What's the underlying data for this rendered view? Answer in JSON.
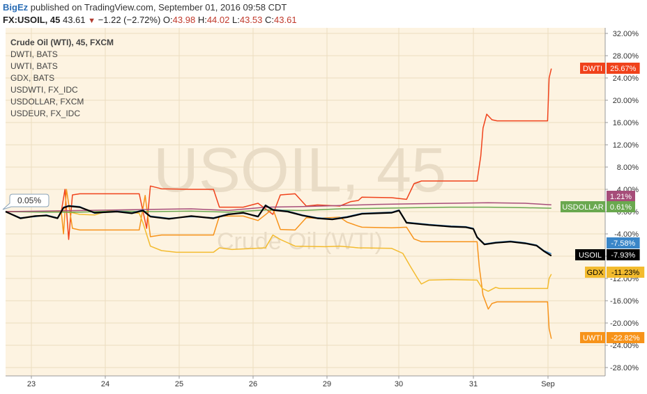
{
  "header": {
    "publisher": "BigEz",
    "published_text": "published on TradingView.com, September 01, 2016 09:58 CDT",
    "symbol": "FX:USOIL, 45",
    "last": "43.61",
    "change": "−1.22 (−2.72%)",
    "open_label": "O:",
    "open": "43.98",
    "high_label": "H:",
    "high": "44.02",
    "low_label": "L:",
    "low": "43.53",
    "close_label": "C:",
    "close": "43.61",
    "down_arrow_icon": "triangle-down-icon"
  },
  "watermark": {
    "big": "USOIL, 45",
    "small": "Crude Oil (WTI)"
  },
  "cursor_label": "0.05%",
  "colors": {
    "background": "#fdf3e1",
    "DWTI": "#f0421b",
    "UWTI": "#f7931a",
    "GDX": "#f3bb2e",
    "USDWTI": "#3a86c8",
    "USDOLLAR": "#6aa84f",
    "USDEUR": "#a64d79",
    "USOIL": "#000000"
  },
  "chart_data": {
    "type": "line",
    "yunit": "%",
    "ylim": [
      -30,
      32
    ],
    "yticks": [
      "32.00%",
      "28.00%",
      "24.00%",
      "20.00%",
      "16.00%",
      "12.00%",
      "8.00%",
      "4.00%",
      "0.00%",
      "-4.00%",
      "-8.00%",
      "-12.00%",
      "-16.00%",
      "-20.00%",
      "-24.00%",
      "-28.00%"
    ],
    "x_days": [
      "23",
      "24",
      "25",
      "26",
      "29",
      "30",
      "31",
      "Sep"
    ],
    "grid": true,
    "legend_placement": "top-left",
    "legend": [
      "Crude Oil (WTI), 45, FXCM",
      "DWTI, BATS",
      "UWTI, BATS",
      "GDX, BATS",
      "USDWTI, FX_IDC",
      "USDOLLAR, FXCM",
      "USDEUR, FX_IDC"
    ],
    "series": [
      {
        "name": "DWTI",
        "label": "DWTI",
        "last": "25.67%",
        "points": [
          [
            0,
            0
          ],
          [
            0.75,
            0
          ],
          [
            0.8,
            4
          ],
          [
            0.85,
            -5
          ],
          [
            0.9,
            3
          ],
          [
            1.0,
            3.2
          ],
          [
            1.4,
            3.2
          ],
          [
            1.8,
            3.2
          ],
          [
            1.9,
            -3
          ],
          [
            1.95,
            4.6
          ],
          [
            2.1,
            4.1
          ],
          [
            2.5,
            4
          ],
          [
            2.8,
            4
          ],
          [
            2.88,
            0.8
          ],
          [
            3.2,
            0.8
          ],
          [
            3.4,
            1.5
          ],
          [
            3.6,
            -0.5
          ],
          [
            3.7,
            3
          ],
          [
            3.9,
            3.2
          ],
          [
            4.05,
            1
          ],
          [
            4.2,
            1.2
          ],
          [
            4.5,
            1
          ],
          [
            4.65,
            1.8
          ],
          [
            4.75,
            2
          ],
          [
            4.8,
            2.6
          ],
          [
            5.2,
            2.5
          ],
          [
            5.4,
            2.2
          ],
          [
            5.5,
            5
          ],
          [
            5.6,
            5.5
          ],
          [
            5.9,
            5.5
          ],
          [
            6.2,
            5.5
          ],
          [
            6.35,
            5.5
          ],
          [
            6.4,
            10
          ],
          [
            6.43,
            15
          ],
          [
            6.48,
            17.5
          ],
          [
            6.55,
            16.5
          ],
          [
            6.62,
            16.3
          ],
          [
            6.9,
            16.3
          ],
          [
            7.3,
            16.3
          ],
          [
            7.32,
            24
          ],
          [
            7.35,
            25.67
          ]
        ]
      },
      {
        "name": "UWTI",
        "label": "UWTI",
        "last": "-22.82%",
        "points": [
          [
            0,
            0
          ],
          [
            0.75,
            0
          ],
          [
            0.78,
            -4
          ],
          [
            0.82,
            4
          ],
          [
            0.9,
            -3
          ],
          [
            1.0,
            -3.3
          ],
          [
            1.8,
            -3.3
          ],
          [
            1.88,
            2.9
          ],
          [
            1.95,
            -4.5
          ],
          [
            2.1,
            -4.2
          ],
          [
            2.5,
            -4.2
          ],
          [
            2.8,
            -4.2
          ],
          [
            2.88,
            -0.8
          ],
          [
            3.2,
            -0.8
          ],
          [
            3.4,
            -1.6
          ],
          [
            3.6,
            0.5
          ],
          [
            3.7,
            -3.2
          ],
          [
            3.9,
            -3.3
          ],
          [
            4.05,
            -1.1
          ],
          [
            4.2,
            -1.2
          ],
          [
            4.5,
            -1
          ],
          [
            4.6,
            -1.9
          ],
          [
            4.75,
            -2.6
          ],
          [
            4.8,
            -2.8
          ],
          [
            5.2,
            -2.9
          ],
          [
            5.4,
            -2.8
          ],
          [
            5.5,
            -4.9
          ],
          [
            5.6,
            -5.4
          ],
          [
            6.2,
            -5.4
          ],
          [
            6.35,
            -5.4
          ],
          [
            6.38,
            -10
          ],
          [
            6.43,
            -15
          ],
          [
            6.5,
            -17.5
          ],
          [
            6.55,
            -16.5
          ],
          [
            6.62,
            -16.2
          ],
          [
            7.0,
            -16.2
          ],
          [
            7.3,
            -16.2
          ],
          [
            7.32,
            -21
          ],
          [
            7.35,
            -22.82
          ]
        ]
      },
      {
        "name": "GDX",
        "label": "GDX",
        "last": "-11.23%",
        "points": [
          [
            0,
            0
          ],
          [
            0.75,
            0
          ],
          [
            0.9,
            -0.2
          ],
          [
            1.0,
            -0.5
          ],
          [
            1.2,
            -0.6
          ],
          [
            1.4,
            0.2
          ],
          [
            1.8,
            -0.3
          ],
          [
            1.85,
            -2
          ],
          [
            1.95,
            -6.2
          ],
          [
            2.1,
            -7
          ],
          [
            2.3,
            -7.3
          ],
          [
            2.6,
            -7.3
          ],
          [
            2.8,
            -7.3
          ],
          [
            2.88,
            -6.5
          ],
          [
            3.05,
            -6.8
          ],
          [
            3.5,
            -6.5
          ],
          [
            3.6,
            -4.2
          ],
          [
            3.7,
            -5
          ],
          [
            3.9,
            -6.2
          ],
          [
            4.3,
            -6.3
          ],
          [
            4.5,
            -6.2
          ],
          [
            4.75,
            -6.5
          ],
          [
            5.2,
            -6.6
          ],
          [
            5.35,
            -7.5
          ],
          [
            5.45,
            -9.8
          ],
          [
            5.55,
            -12
          ],
          [
            5.6,
            -13
          ],
          [
            5.7,
            -12.3
          ],
          [
            6.0,
            -12.2
          ],
          [
            6.35,
            -12.3
          ],
          [
            6.42,
            -13.8
          ],
          [
            6.5,
            -14.3
          ],
          [
            6.6,
            -13.6
          ],
          [
            6.65,
            -13.8
          ],
          [
            7.0,
            -13.8
          ],
          [
            7.3,
            -13.8
          ],
          [
            7.32,
            -12
          ],
          [
            7.35,
            -11.23
          ]
        ]
      },
      {
        "name": "USDWTI",
        "label": "",
        "last": "-7.58%",
        "points": [
          [
            0,
            0
          ],
          [
            0.2,
            -1.1
          ],
          [
            0.4,
            -0.9
          ],
          [
            0.55,
            -0.6
          ],
          [
            0.7,
            -1.1
          ],
          [
            0.78,
            0.8
          ],
          [
            0.85,
            1.1
          ],
          [
            1.0,
            0.9
          ],
          [
            1.2,
            -0.3
          ],
          [
            1.5,
            0.1
          ],
          [
            1.7,
            -0.2
          ],
          [
            1.85,
            0.3
          ],
          [
            1.95,
            -0.8
          ],
          [
            2.2,
            -1.2
          ],
          [
            2.5,
            -0.9
          ],
          [
            2.8,
            -1.1
          ],
          [
            3.0,
            -0.4
          ],
          [
            3.2,
            -0.3
          ],
          [
            3.4,
            -0.8
          ],
          [
            3.5,
            1.2
          ],
          [
            3.6,
            0.4
          ],
          [
            3.8,
            0.1
          ],
          [
            4.0,
            -0.6
          ],
          [
            4.2,
            -1.1
          ],
          [
            4.4,
            -1.3
          ],
          [
            4.6,
            -0.9
          ],
          [
            4.8,
            -0.3
          ],
          [
            5.0,
            -0.2
          ],
          [
            5.2,
            -0.1
          ],
          [
            5.3,
            0.3
          ],
          [
            5.4,
            -1.9
          ],
          [
            5.7,
            -2.3
          ],
          [
            6.0,
            -2.6
          ],
          [
            6.2,
            -2.7
          ],
          [
            6.3,
            -3.0
          ],
          [
            6.35,
            -4.5
          ],
          [
            6.45,
            -5.8
          ],
          [
            6.6,
            -5.5
          ],
          [
            6.8,
            -5.3
          ],
          [
            7.0,
            -5.6
          ],
          [
            7.15,
            -6
          ],
          [
            7.25,
            -7
          ],
          [
            7.35,
            -7.58
          ]
        ]
      },
      {
        "name": "USOIL",
        "label": "USOIL",
        "last": "-7.93%",
        "points": [
          [
            0,
            0
          ],
          [
            0.2,
            -1.2
          ],
          [
            0.4,
            -0.8
          ],
          [
            0.55,
            -0.7
          ],
          [
            0.7,
            -1.2
          ],
          [
            0.78,
            0.7
          ],
          [
            0.85,
            1.0
          ],
          [
            1.0,
            0.8
          ],
          [
            1.2,
            -0.2
          ],
          [
            1.5,
            0.0
          ],
          [
            1.7,
            -0.3
          ],
          [
            1.85,
            0.2
          ],
          [
            1.95,
            -0.9
          ],
          [
            2.2,
            -1.3
          ],
          [
            2.5,
            -0.8
          ],
          [
            2.8,
            -1.2
          ],
          [
            3.0,
            -0.5
          ],
          [
            3.2,
            -0.2
          ],
          [
            3.4,
            -0.9
          ],
          [
            3.5,
            1.1
          ],
          [
            3.6,
            0.3
          ],
          [
            3.8,
            0.0
          ],
          [
            4.0,
            -0.7
          ],
          [
            4.2,
            -1.2
          ],
          [
            4.4,
            -1.4
          ],
          [
            4.6,
            -1.0
          ],
          [
            4.8,
            -0.4
          ],
          [
            5.0,
            -0.3
          ],
          [
            5.2,
            -0.2
          ],
          [
            5.3,
            0.2
          ],
          [
            5.4,
            -2.0
          ],
          [
            5.7,
            -2.4
          ],
          [
            6.0,
            -2.7
          ],
          [
            6.2,
            -2.8
          ],
          [
            6.3,
            -3.1
          ],
          [
            6.35,
            -4.6
          ],
          [
            6.45,
            -5.9
          ],
          [
            6.6,
            -5.6
          ],
          [
            6.8,
            -5.4
          ],
          [
            7.0,
            -5.7
          ],
          [
            7.15,
            -6.1
          ],
          [
            7.25,
            -7.1
          ],
          [
            7.35,
            -7.93
          ]
        ]
      },
      {
        "name": "USDOLLAR",
        "label": "USDOLLAR",
        "last": "0.61%",
        "points": [
          [
            0,
            0
          ],
          [
            0.5,
            -0.1
          ],
          [
            1.0,
            -0.1
          ],
          [
            1.5,
            0.1
          ],
          [
            2.0,
            0.0
          ],
          [
            2.5,
            0.1
          ],
          [
            3.0,
            -0.1
          ],
          [
            3.5,
            0.3
          ],
          [
            4.0,
            0.2
          ],
          [
            4.5,
            0.5
          ],
          [
            5.0,
            0.6
          ],
          [
            5.5,
            0.7
          ],
          [
            6.0,
            0.8
          ],
          [
            6.5,
            0.8
          ],
          [
            7.0,
            0.7
          ],
          [
            7.35,
            0.61
          ]
        ]
      },
      {
        "name": "USDEUR",
        "label": "",
        "last": "1.21%",
        "points": [
          [
            0,
            0
          ],
          [
            0.5,
            0.1
          ],
          [
            1.0,
            0.2
          ],
          [
            1.5,
            0.3
          ],
          [
            2.0,
            0.4
          ],
          [
            2.5,
            0.5
          ],
          [
            3.0,
            0.2
          ],
          [
            3.5,
            0.8
          ],
          [
            4.0,
            0.9
          ],
          [
            4.5,
            1.1
          ],
          [
            5.0,
            1.3
          ],
          [
            5.5,
            1.4
          ],
          [
            6.0,
            1.5
          ],
          [
            6.5,
            1.6
          ],
          [
            7.0,
            1.5
          ],
          [
            7.35,
            1.21
          ]
        ]
      }
    ]
  }
}
